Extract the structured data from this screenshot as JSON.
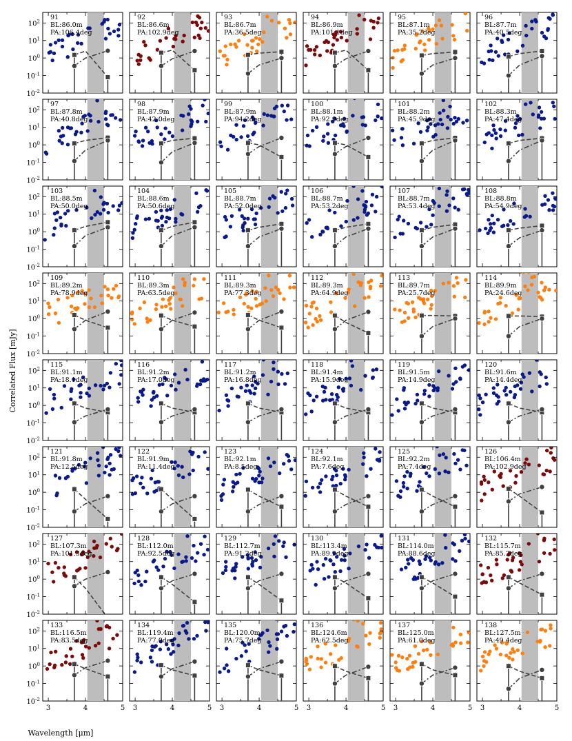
{
  "chart_data": {
    "type": "scatter",
    "layout": "grid of small multiples, 8 rows by 6 columns",
    "xlabel": "Wavelength [μm]",
    "ylabel": "Correlated Flux [mJy]",
    "xlim": [
      2.85,
      5.0
    ],
    "ylim": [
      0.01,
      400
    ],
    "yscale": "log",
    "x_ticks": [
      3,
      4,
      5
    ],
    "y_ticks": [
      "10^-2",
      "10^-1",
      "10^0",
      "10^1",
      "10^2"
    ],
    "shaded_band_um": [
      4.05,
      4.5
    ],
    "colors": {
      "blue": "#0a1a8c",
      "red": "#7d0a0a",
      "orange": "#ff7f0e",
      "model": "#404040",
      "band": "#bdbdbd"
    },
    "panels": [
      {
        "id": "91",
        "bl": "BL:86.0m",
        "pa": "PA:106.4deg",
        "color": "blue",
        "sq": [
          1.5,
          2.5,
          0.08
        ],
        "ci": [
          0.35,
          1.0,
          2.6
        ]
      },
      {
        "id": "92",
        "bl": "BL:86.6m",
        "pa": "PA:102.9deg",
        "color": "red",
        "sq": [
          2.0,
          2.8,
          0.2
        ],
        "ci": [
          0.35,
          0.9,
          2.5
        ]
      },
      {
        "id": "93",
        "bl": "BL:86.7m",
        "pa": "PA:36.5deg",
        "color": "orange",
        "sq": [
          1.5,
          1.9,
          2.3
        ],
        "ci": [
          0.13,
          0.4,
          1.0
        ]
      },
      {
        "id": "94",
        "bl": "BL:86.9m",
        "pa": "PA:101.1deg",
        "color": "red",
        "sq": [
          2.0,
          2.8,
          0.2
        ],
        "ci": [
          0.35,
          0.9,
          2.5
        ]
      },
      {
        "id": "95",
        "bl": "BL:87.1m",
        "pa": "PA:35.2deg",
        "color": "orange",
        "sq": [
          1.4,
          1.8,
          2.2
        ],
        "ci": [
          0.13,
          0.4,
          1.0
        ]
      },
      {
        "id": "96",
        "bl": "BL:87.7m",
        "pa": "PA:40.5deg",
        "color": "blue",
        "sq": [
          1.2,
          1.8,
          2.5
        ],
        "ci": [
          0.1,
          0.4,
          1.3
        ]
      },
      {
        "id": "97",
        "bl": "BL:87.8m",
        "pa": "PA:40.8deg",
        "color": "blue",
        "sq": [
          1.2,
          1.8,
          2.6
        ],
        "ci": [
          0.12,
          0.5,
          1.8
        ]
      },
      {
        "id": "98",
        "bl": "BL:87.9m",
        "pa": "PA:42.0deg",
        "color": "blue",
        "sq": [
          1.2,
          1.8,
          2.4
        ],
        "ci": [
          0.1,
          0.4,
          1.3
        ]
      },
      {
        "id": "99",
        "bl": "BL:87.9m",
        "pa": "PA:94.2deg",
        "color": "blue",
        "sq": [
          1.3,
          1.0,
          0.2
        ],
        "ci": [
          0.3,
          0.8,
          2.5
        ]
      },
      {
        "id": "100",
        "bl": "BL:88.1m",
        "pa": "PA:92.9deg",
        "color": "blue",
        "sq": [
          1.3,
          1.0,
          0.2
        ],
        "ci": [
          0.3,
          0.8,
          2.5
        ]
      },
      {
        "id": "101",
        "bl": "BL:88.2m",
        "pa": "PA:45.9deg",
        "color": "blue",
        "sq": [
          1.2,
          1.8,
          2.5
        ],
        "ci": [
          0.12,
          0.5,
          1.8
        ]
      },
      {
        "id": "102",
        "bl": "BL:88.3m",
        "pa": "PA:47.4deg",
        "color": "blue",
        "sq": [
          1.2,
          1.8,
          2.4
        ],
        "ci": [
          0.12,
          0.5,
          1.8
        ]
      },
      {
        "id": "103",
        "bl": "BL:88.5m",
        "pa": "PA:50.0deg",
        "color": "blue",
        "sq": [
          1.2,
          2.0,
          3.5
        ],
        "ci": [
          0.15,
          0.6,
          1.8
        ]
      },
      {
        "id": "104",
        "bl": "BL:88.6m",
        "pa": "PA:50.6deg",
        "color": "blue",
        "sq": [
          1.2,
          2.0,
          3.5
        ],
        "ci": [
          0.15,
          0.6,
          1.8
        ]
      },
      {
        "id": "105",
        "bl": "BL:88.7m",
        "pa": "PA:52.0deg",
        "color": "blue",
        "sq": [
          1.2,
          1.8,
          2.8
        ],
        "ci": [
          0.15,
          0.5,
          1.5
        ]
      },
      {
        "id": "106",
        "bl": "BL:88.7m",
        "pa": "PA:53.2deg",
        "color": "blue",
        "sq": [
          1.2,
          1.8,
          2.8
        ],
        "ci": [
          0.15,
          0.5,
          1.5
        ]
      },
      {
        "id": "107",
        "bl": "BL:88.7m",
        "pa": "PA:53.4deg",
        "color": "blue",
        "sq": [
          1.2,
          1.8,
          2.6
        ],
        "ci": [
          0.15,
          0.5,
          1.5
        ]
      },
      {
        "id": "108",
        "bl": "BL:88.8m",
        "pa": "PA:54.9deg",
        "color": "blue",
        "sq": [
          1.2,
          1.6,
          2.2
        ],
        "ci": [
          0.15,
          0.45,
          1.2
        ]
      },
      {
        "id": "109",
        "bl": "BL:89.2m",
        "pa": "PA:78.9deg",
        "color": "orange",
        "sq": [
          1.6,
          0.8,
          0.3
        ],
        "ci": [
          0.25,
          0.8,
          2.5
        ]
      },
      {
        "id": "110",
        "bl": "BL:89.3m",
        "pa": "PA:63.5deg",
        "color": "orange",
        "sq": [
          1.5,
          0.8,
          0.35
        ],
        "ci": [
          0.25,
          0.8,
          2.2
        ]
      },
      {
        "id": "111",
        "bl": "BL:89.3m",
        "pa": "PA:77.3deg",
        "color": "orange",
        "sq": [
          1.6,
          0.8,
          0.3
        ],
        "ci": [
          0.25,
          0.8,
          2.5
        ]
      },
      {
        "id": "112",
        "bl": "BL:89.3m",
        "pa": "PA:64.9deg",
        "color": "orange",
        "sq": [
          1.5,
          0.6,
          0.15
        ],
        "ci": [
          0.25,
          0.8,
          2.4
        ]
      },
      {
        "id": "113",
        "bl": "BL:89.7m",
        "pa": "PA:25.7deg",
        "color": "orange",
        "sq": [
          1.5,
          1.5,
          1.4
        ],
        "ci": [
          0.1,
          0.35,
          1.0
        ]
      },
      {
        "id": "114",
        "bl": "BL:89.9m",
        "pa": "PA:24.6deg",
        "color": "orange",
        "sq": [
          1.4,
          1.4,
          1.3
        ],
        "ci": [
          0.1,
          0.35,
          1.0
        ]
      },
      {
        "id": "115",
        "bl": "BL:91.1m",
        "pa": "PA:18.1deg",
        "color": "blue",
        "sq": [
          1.3,
          0.7,
          0.4
        ],
        "ci": [
          0.11,
          0.25,
          0.6
        ]
      },
      {
        "id": "116",
        "bl": "BL:91.2m",
        "pa": "PA:17.0deg",
        "color": "blue",
        "sq": [
          1.3,
          0.7,
          0.4
        ],
        "ci": [
          0.11,
          0.25,
          0.6
        ]
      },
      {
        "id": "117",
        "bl": "BL:91.2m",
        "pa": "PA:16.8deg",
        "color": "blue",
        "sq": [
          1.3,
          0.7,
          0.4
        ],
        "ci": [
          0.11,
          0.25,
          0.6
        ]
      },
      {
        "id": "118",
        "bl": "BL:91.4m",
        "pa": "PA:15.9deg",
        "color": "blue",
        "sq": [
          1.3,
          0.7,
          0.4
        ],
        "ci": [
          0.11,
          0.25,
          0.6
        ]
      },
      {
        "id": "119",
        "bl": "BL:91.5m",
        "pa": "PA:14.9deg",
        "color": "blue",
        "sq": [
          1.3,
          0.7,
          0.4
        ],
        "ci": [
          0.11,
          0.25,
          0.6
        ]
      },
      {
        "id": "120",
        "bl": "BL:91.6m",
        "pa": "PA:14.4deg",
        "color": "blue",
        "sq": [
          1.3,
          0.7,
          0.4
        ],
        "ci": [
          0.11,
          0.25,
          0.6
        ]
      },
      {
        "id": "121",
        "bl": "BL:91.8m",
        "pa": "PA:12.5deg",
        "color": "blue",
        "sq": [
          1.5,
          0.4,
          0.03
        ],
        "ci": [
          0.08,
          0.22,
          0.6
        ]
      },
      {
        "id": "122",
        "bl": "BL:91.9m",
        "pa": "PA:11.4deg",
        "color": "blue",
        "sq": [
          1.5,
          0.4,
          0.03
        ],
        "ci": [
          0.08,
          0.22,
          0.6
        ]
      },
      {
        "id": "123",
        "bl": "BL:92.1m",
        "pa": "PA:8.5deg",
        "color": "blue",
        "sq": [
          1.4,
          0.6,
          0.15
        ],
        "ci": [
          0.08,
          0.2,
          0.6
        ]
      },
      {
        "id": "124",
        "bl": "BL:92.1m",
        "pa": "PA:7.6deg",
        "color": "blue",
        "sq": [
          1.4,
          0.6,
          0.15
        ],
        "ci": [
          0.08,
          0.2,
          0.6
        ]
      },
      {
        "id": "125",
        "bl": "BL:92.2m",
        "pa": "PA:7.4deg",
        "color": "blue",
        "sq": [
          1.4,
          0.6,
          0.15
        ],
        "ci": [
          0.08,
          0.2,
          0.6
        ]
      },
      {
        "id": "126",
        "bl": "BL:106.4m",
        "pa": "PA:102.9deg",
        "color": "red",
        "sq": [
          1.6,
          0.6,
          0.07
        ],
        "ci": [
          0.3,
          0.8,
          2.0
        ]
      },
      {
        "id": "127",
        "bl": "BL:107.3m",
        "pa": "PA:101.3deg",
        "color": "red",
        "sq": [
          1.3,
          0.3,
          0.006
        ],
        "ci": [
          0.4,
          1.0,
          2.5
        ]
      },
      {
        "id": "128",
        "bl": "BL:112.0m",
        "pa": "PA:92.5deg",
        "color": "blue",
        "sq": [
          1.3,
          0.5,
          0.05
        ],
        "ci": [
          0.3,
          0.8,
          2.0
        ]
      },
      {
        "id": "129",
        "bl": "BL:112.7m",
        "pa": "PA:91.2deg",
        "color": "blue",
        "sq": [
          1.3,
          0.5,
          0.06
        ],
        "ci": [
          0.3,
          0.8,
          2.0
        ]
      },
      {
        "id": "130",
        "bl": "BL:113.4m",
        "pa": "PA:89.9deg",
        "color": "blue",
        "sq": [
          1.3,
          0.6,
          0.08
        ],
        "ci": [
          0.3,
          0.8,
          2.0
        ]
      },
      {
        "id": "131",
        "bl": "BL:114.0m",
        "pa": "PA:88.6deg",
        "color": "blue",
        "sq": [
          1.3,
          0.6,
          0.1
        ],
        "ci": [
          0.3,
          0.8,
          2.0
        ]
      },
      {
        "id": "132",
        "bl": "BL:115.7m",
        "pa": "PA:85.2deg",
        "color": "red",
        "sq": [
          1.3,
          0.6,
          0.13
        ],
        "ci": [
          0.3,
          0.8,
          2.0
        ]
      },
      {
        "id": "133",
        "bl": "BL:116.5m",
        "pa": "PA:83.5deg",
        "color": "red",
        "sq": [
          1.3,
          0.7,
          0.25
        ],
        "ci": [
          0.3,
          0.8,
          2.0
        ]
      },
      {
        "id": "134",
        "bl": "BL:119.4m",
        "pa": "PA:77.0deg",
        "color": "blue",
        "sq": [
          1.1,
          0.6,
          0.28
        ],
        "ci": [
          0.25,
          0.7,
          1.8
        ]
      },
      {
        "id": "135",
        "bl": "BL:120.0m",
        "pa": "PA:75.7deg",
        "color": "blue",
        "sq": [
          1.1,
          0.6,
          0.28
        ],
        "ci": [
          0.25,
          0.7,
          1.8
        ]
      },
      {
        "id": "136",
        "bl": "BL:124.6m",
        "pa": "PA:62.5deg",
        "color": "orange",
        "sq": [
          1.0,
          0.5,
          0.2
        ],
        "ci": [
          0.1,
          0.3,
          0.9
        ]
      },
      {
        "id": "137",
        "bl": "BL:125.0m",
        "pa": "PA:61.0deg",
        "color": "orange",
        "sq": [
          1.3,
          0.6,
          0.3
        ],
        "ci": [
          0.1,
          0.3,
          0.8
        ]
      },
      {
        "id": "138",
        "bl": "BL:127.5m",
        "pa": "PA:49.4deg",
        "color": "orange",
        "sq": [
          1.0,
          0.5,
          0.2
        ],
        "ci": [
          0.05,
          0.2,
          0.6
        ]
      }
    ]
  }
}
